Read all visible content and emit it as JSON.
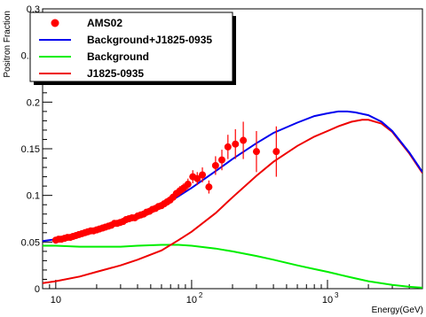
{
  "chart_data": {
    "type": "scatter",
    "title": "",
    "xlabel": "Energy(GeV)",
    "ylabel": "Positron Fraction",
    "xscale": "log",
    "xlim": [
      8,
      500000
    ],
    "ylim": [
      0,
      0.3
    ],
    "x_tick_labels": [
      "10",
      "10",
      "10"
    ],
    "x_tick_exponents": [
      "",
      "2",
      "3"
    ],
    "y_tick_labels": [
      "0",
      "0.05",
      "0.1",
      "0.15",
      "0.2",
      "0.25",
      "0.3"
    ],
    "legend_position": "top-left",
    "grid": false,
    "series": [
      {
        "name": "AMS02",
        "kind": "points",
        "color": "#ff0000",
        "x": [
          10.0,
          10.5,
          11.0,
          11.6,
          12.2,
          12.8,
          13.4,
          14.1,
          14.8,
          15.6,
          16.4,
          17.2,
          18.1,
          19.0,
          20.0,
          21.0,
          22.1,
          23.2,
          24.4,
          25.6,
          27.0,
          28.3,
          29.8,
          31.3,
          32.9,
          34.6,
          36.4,
          38.2,
          40.2,
          42.2,
          44.4,
          46.6,
          49.0,
          51.5,
          54.1,
          56.9,
          59.8,
          62.8,
          66.0,
          69.4,
          72.9,
          77.2,
          82.0,
          87.5,
          94.0,
          102,
          110,
          120,
          134,
          150,
          167,
          185,
          210,
          240,
          300,
          420
        ],
        "y": [
          0.052,
          0.053,
          0.053,
          0.054,
          0.055,
          0.055,
          0.056,
          0.057,
          0.058,
          0.059,
          0.06,
          0.061,
          0.062,
          0.062,
          0.063,
          0.064,
          0.065,
          0.066,
          0.067,
          0.068,
          0.07,
          0.07,
          0.071,
          0.072,
          0.074,
          0.075,
          0.076,
          0.076,
          0.078,
          0.079,
          0.08,
          0.082,
          0.083,
          0.085,
          0.086,
          0.088,
          0.089,
          0.091,
          0.093,
          0.095,
          0.098,
          0.102,
          0.105,
          0.108,
          0.112,
          0.12,
          0.118,
          0.122,
          0.109,
          0.132,
          0.138,
          0.152,
          0.155,
          0.159,
          0.147,
          0.147
        ],
        "yerr": [
          0.001,
          0.001,
          0.001,
          0.001,
          0.001,
          0.001,
          0.001,
          0.001,
          0.001,
          0.001,
          0.001,
          0.001,
          0.001,
          0.001,
          0.001,
          0.001,
          0.001,
          0.001,
          0.001,
          0.001,
          0.001,
          0.001,
          0.002,
          0.002,
          0.002,
          0.002,
          0.002,
          0.002,
          0.002,
          0.002,
          0.002,
          0.003,
          0.003,
          0.003,
          0.003,
          0.003,
          0.003,
          0.003,
          0.004,
          0.004,
          0.004,
          0.004,
          0.005,
          0.005,
          0.006,
          0.007,
          0.007,
          0.008,
          0.007,
          0.01,
          0.011,
          0.013,
          0.016,
          0.02,
          0.022,
          0.027
        ]
      },
      {
        "name": "Background+J1825-0935",
        "kind": "line",
        "color": "#0000ee",
        "x": [
          8,
          10,
          15,
          20,
          30,
          40,
          60,
          80,
          100,
          150,
          200,
          300,
          400,
          600,
          800,
          1000,
          1200,
          1400,
          1600,
          2000,
          2500,
          3000,
          4000,
          5000
        ],
        "y": [
          0.051,
          0.053,
          0.058,
          0.062,
          0.07,
          0.076,
          0.088,
          0.099,
          0.108,
          0.126,
          0.139,
          0.156,
          0.167,
          0.178,
          0.185,
          0.188,
          0.19,
          0.19,
          0.189,
          0.186,
          0.179,
          0.169,
          0.146,
          0.125
        ]
      },
      {
        "name": "Background",
        "kind": "line",
        "color": "#00ee00",
        "x": [
          8,
          10,
          15,
          20,
          30,
          40,
          60,
          80,
          100,
          150,
          200,
          300,
          400,
          600,
          800,
          1000,
          1500,
          2000,
          3000,
          4000,
          5000
        ],
        "y": [
          0.046,
          0.046,
          0.045,
          0.045,
          0.045,
          0.046,
          0.047,
          0.047,
          0.046,
          0.043,
          0.04,
          0.035,
          0.031,
          0.025,
          0.021,
          0.018,
          0.012,
          0.008,
          0.004,
          0.002,
          0.001
        ]
      },
      {
        "name": "J1825-0935",
        "kind": "line",
        "color": "#ee0000",
        "x": [
          8,
          10,
          15,
          20,
          30,
          40,
          60,
          80,
          100,
          150,
          200,
          300,
          400,
          600,
          800,
          1000,
          1200,
          1500,
          1800,
          2000,
          2500,
          3000,
          4000,
          5000
        ],
        "y": [
          0.006,
          0.008,
          0.013,
          0.018,
          0.025,
          0.031,
          0.041,
          0.052,
          0.061,
          0.081,
          0.098,
          0.121,
          0.136,
          0.153,
          0.163,
          0.169,
          0.174,
          0.179,
          0.181,
          0.181,
          0.177,
          0.168,
          0.145,
          0.124
        ]
      }
    ]
  }
}
